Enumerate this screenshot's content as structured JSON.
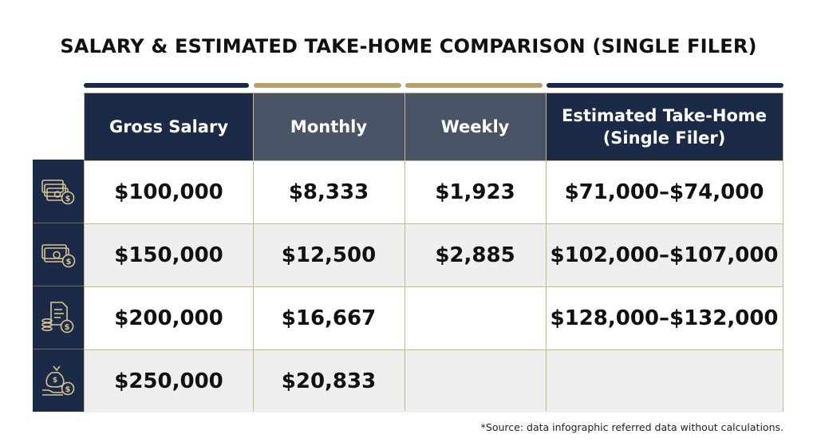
{
  "title": "SALARY & ESTIMATED TAKE-HOME COMPARISON (SINGLE FILER)",
  "colors": {
    "navy": "#1a2a47",
    "slate": "#495567",
    "gold": "#b8a16a",
    "alt_row": "#efefef"
  },
  "chart_data": {
    "type": "table",
    "title": "SALARY & ESTIMATED TAKE-HOME COMPARISON (SINGLE FILER)",
    "columns": [
      "Gross Salary",
      "Monthly",
      "Weekly",
      "Estimated Take-Home (Single Filer)"
    ],
    "header": {
      "gross": "Gross Salary",
      "monthly": "Monthly",
      "weekly": "Weekly",
      "takehome_line1": "Estimated Take-Home",
      "takehome_line2": "(Single Filer)"
    },
    "rows": [
      {
        "icon": "cash-stack-dollar-icon",
        "gross": "$100,000",
        "monthly": "$8,333",
        "weekly": "$1,923",
        "takehome": "$71,000–$74,000"
      },
      {
        "icon": "banknotes-dollar-icon",
        "gross": "$150,000",
        "monthly": "$12,500",
        "weekly": "$2,885",
        "takehome": "$102,000–$107,000"
      },
      {
        "icon": "document-coins-icon",
        "gross": "$200,000",
        "monthly": "$16,667",
        "weekly": "",
        "takehome": "$128,000–$132,000"
      },
      {
        "icon": "money-bag-hand-icon",
        "gross": "$250,000",
        "monthly": "$20,833",
        "weekly": "",
        "takehome": ""
      }
    ]
  },
  "footnote": "*Source: data infographic referred data without calculations."
}
